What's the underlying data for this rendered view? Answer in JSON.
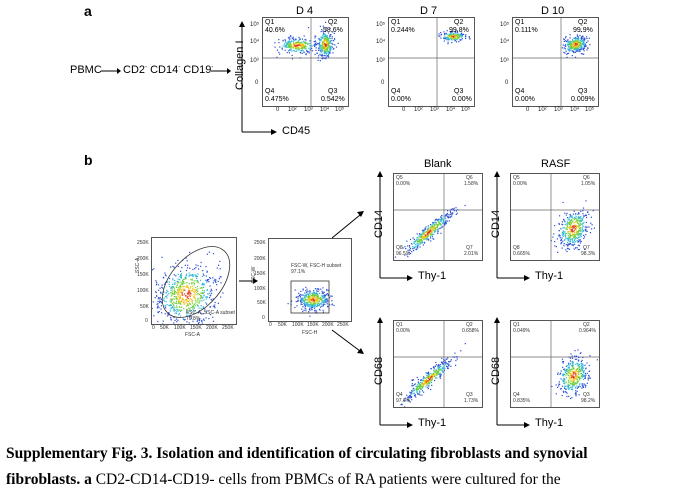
{
  "panel_a": {
    "letter": "a",
    "flow": {
      "pbmc": "PBMC",
      "cd2": "CD2",
      "cd14": "CD14",
      "cd19": "CD19",
      "sup": "-"
    },
    "y_axis_label": "Collagen I",
    "x_axis_label": "CD45",
    "plots": [
      {
        "title": "D 4",
        "q1": "Q1",
        "q1_val": "40.6%",
        "q2": "Q2",
        "q2_val": "58.6%",
        "q3": "Q3",
        "q3_val": "0.542%",
        "q4": "Q4",
        "q4_val": "0.475%"
      },
      {
        "title": "D 7",
        "q1": "Q1",
        "q1_val": "0.244%",
        "q2": "Q2",
        "q2_val": "99.8%",
        "q3": "Q3",
        "q3_val": "0.00%",
        "q4": "Q4",
        "q4_val": "0.00%"
      },
      {
        "title": "D 10",
        "q1": "Q1",
        "q1_val": "0.111%",
        "q2": "Q2",
        "q2_val": "99.9%",
        "q3": "Q3",
        "q3_val": "0.009%",
        "q4": "Q4",
        "q4_val": "0.00%"
      }
    ]
  },
  "panel_b": {
    "letter": "b",
    "col_blank": "Blank",
    "col_rasf": "RASF",
    "gate1": {
      "name": "FSC-A, SSC-A subset",
      "value": "70.8%",
      "xlabel": "FSC-A",
      "ylabel": "SSC-A"
    },
    "gate2": {
      "name": "FSC-W, FSC-H subset",
      "value": "97.1%",
      "xlabel": "FSC-H",
      "ylabel": "FSC-W"
    },
    "thy1": "Thy-1",
    "cd14": "CD14",
    "cd68": "CD68",
    "plots": [
      {
        "id": "blank-cd14",
        "q_ul": "Q5",
        "v_ul": "0.00%",
        "q_ur": "Q6",
        "v_ur": "1.58%",
        "q_ll": "Q8",
        "v_ll": "96.5%",
        "q_lr": "Q7",
        "v_lr": "2.01%"
      },
      {
        "id": "rasf-cd14",
        "q_ul": "Q5",
        "v_ul": "0.00%",
        "q_ur": "Q6",
        "v_ur": "1.05%",
        "q_ll": "Q8",
        "v_ll": "0.665%",
        "q_lr": "Q7",
        "v_lr": "98.3%"
      },
      {
        "id": "blank-cd68",
        "q_ul": "Q1",
        "v_ul": "0.00%",
        "q_ur": "Q2",
        "v_ur": "0.658%",
        "q_ll": "Q4",
        "v_ll": "97.6%",
        "q_lr": "Q3",
        "v_lr": "1.73%"
      },
      {
        "id": "rasf-cd68",
        "q_ul": "Q1",
        "v_ul": "0.049%",
        "q_ur": "Q2",
        "v_ur": "0.964%",
        "q_ll": "Q4",
        "v_ll": "0.835%",
        "q_lr": "Q3",
        "v_lr": "98.2%"
      }
    ]
  },
  "ticks": {
    "t0": "0",
    "t2": "10²",
    "t3": "10³",
    "t4": "10⁴",
    "t5": "10⁵",
    "tn": "-10³",
    "lin": [
      "0",
      "50K",
      "100K",
      "150K",
      "200K",
      "250K"
    ]
  },
  "caption": {
    "line1": "Supplementary Fig. 3. Isolation and identification of circulating fibroblasts and synovial",
    "line2_bold": "fibroblasts. a",
    "line2_rest": " CD2-CD14-CD19- cells from PBMCs of RA patients were cultured for the"
  }
}
